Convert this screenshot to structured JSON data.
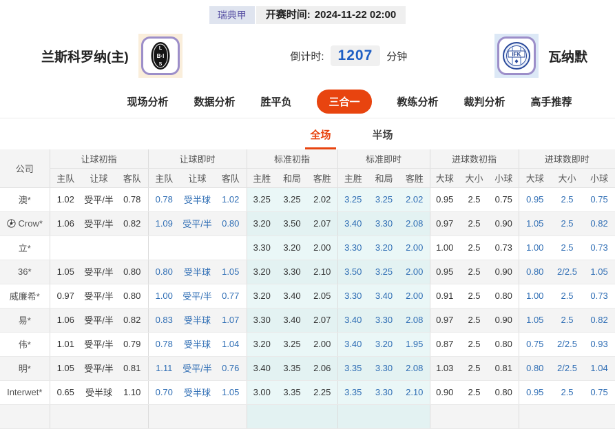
{
  "header": {
    "league_badge": "瑞典甲",
    "kickoff_label": "开赛时间:",
    "kickoff_time": "2024-11-22 02:00"
  },
  "match": {
    "home_team": "兰斯科罗纳(主)",
    "home_logo_letters": [
      "L",
      "B·I",
      "S"
    ],
    "away_team": "瓦纳默",
    "away_logo_text": "IFK",
    "countdown_label": "倒计时:",
    "countdown_value": "1207",
    "countdown_unit": "分钟"
  },
  "nav": {
    "tabs": [
      {
        "label": "现场分析",
        "active": false
      },
      {
        "label": "数据分析",
        "active": false
      },
      {
        "label": "胜平负",
        "active": false
      },
      {
        "label": "三合一",
        "active": true
      },
      {
        "label": "教练分析",
        "active": false
      },
      {
        "label": "裁判分析",
        "active": false
      },
      {
        "label": "高手推荐",
        "active": false
      }
    ]
  },
  "subnav": {
    "tabs": [
      {
        "label": "全场",
        "active": true
      },
      {
        "label": "半场",
        "active": false
      }
    ]
  },
  "table": {
    "company_header": "公司",
    "groups": [
      {
        "label": "让球初指",
        "cols": [
          "主队",
          "让球",
          "客队"
        ],
        "live": false,
        "tint": false
      },
      {
        "label": "让球即时",
        "cols": [
          "主队",
          "让球",
          "客队"
        ],
        "live": true,
        "tint": false
      },
      {
        "label": "标准初指",
        "cols": [
          "主胜",
          "和局",
          "客胜"
        ],
        "live": false,
        "tint": true
      },
      {
        "label": "标准即时",
        "cols": [
          "主胜",
          "和局",
          "客胜"
        ],
        "live": true,
        "tint": true
      },
      {
        "label": "进球数初指",
        "cols": [
          "大球",
          "大小",
          "小球"
        ],
        "live": false,
        "tint": false
      },
      {
        "label": "进球数即时",
        "cols": [
          "大球",
          "大小",
          "小球"
        ],
        "live": true,
        "tint": false
      }
    ],
    "rows": [
      {
        "company": "澳*",
        "ball_icon": false,
        "cells": [
          [
            "1.02",
            "受平/半",
            "0.78"
          ],
          [
            "0.78",
            "受半球",
            "1.02"
          ],
          [
            "3.25",
            "3.25",
            "2.02"
          ],
          [
            "3.25",
            "3.25",
            "2.02"
          ],
          [
            "0.95",
            "2.5",
            "0.75"
          ],
          [
            "0.95",
            "2.5",
            "0.75"
          ]
        ]
      },
      {
        "company": "Crow*",
        "ball_icon": true,
        "cells": [
          [
            "1.06",
            "受平/半",
            "0.82"
          ],
          [
            "1.09",
            "受平/半",
            "0.80"
          ],
          [
            "3.20",
            "3.50",
            "2.07"
          ],
          [
            "3.40",
            "3.30",
            "2.08"
          ],
          [
            "0.97",
            "2.5",
            "0.90"
          ],
          [
            "1.05",
            "2.5",
            "0.82"
          ]
        ]
      },
      {
        "company": "立*",
        "ball_icon": false,
        "cells": [
          [
            "",
            "",
            ""
          ],
          [
            "",
            "",
            ""
          ],
          [
            "3.30",
            "3.20",
            "2.00"
          ],
          [
            "3.30",
            "3.20",
            "2.00"
          ],
          [
            "1.00",
            "2.5",
            "0.73"
          ],
          [
            "1.00",
            "2.5",
            "0.73"
          ]
        ]
      },
      {
        "company": "36*",
        "ball_icon": false,
        "cells": [
          [
            "1.05",
            "受平/半",
            "0.80"
          ],
          [
            "0.80",
            "受半球",
            "1.05"
          ],
          [
            "3.20",
            "3.30",
            "2.10"
          ],
          [
            "3.50",
            "3.25",
            "2.00"
          ],
          [
            "0.95",
            "2.5",
            "0.90"
          ],
          [
            "0.80",
            "2/2.5",
            "1.05"
          ]
        ]
      },
      {
        "company": "威廉希*",
        "ball_icon": false,
        "cells": [
          [
            "0.97",
            "受平/半",
            "0.80"
          ],
          [
            "1.00",
            "受平/半",
            "0.77"
          ],
          [
            "3.20",
            "3.40",
            "2.05"
          ],
          [
            "3.30",
            "3.40",
            "2.00"
          ],
          [
            "0.91",
            "2.5",
            "0.80"
          ],
          [
            "1.00",
            "2.5",
            "0.73"
          ]
        ]
      },
      {
        "company": "易*",
        "ball_icon": false,
        "cells": [
          [
            "1.06",
            "受平/半",
            "0.82"
          ],
          [
            "0.83",
            "受半球",
            "1.07"
          ],
          [
            "3.30",
            "3.40",
            "2.07"
          ],
          [
            "3.40",
            "3.30",
            "2.08"
          ],
          [
            "0.97",
            "2.5",
            "0.90"
          ],
          [
            "1.05",
            "2.5",
            "0.82"
          ]
        ]
      },
      {
        "company": "伟*",
        "ball_icon": false,
        "cells": [
          [
            "1.01",
            "受平/半",
            "0.79"
          ],
          [
            "0.78",
            "受半球",
            "1.04"
          ],
          [
            "3.20",
            "3.25",
            "2.00"
          ],
          [
            "3.40",
            "3.20",
            "1.95"
          ],
          [
            "0.87",
            "2.5",
            "0.80"
          ],
          [
            "0.75",
            "2/2.5",
            "0.93"
          ]
        ]
      },
      {
        "company": "明*",
        "ball_icon": false,
        "cells": [
          [
            "1.05",
            "受平/半",
            "0.81"
          ],
          [
            "1.11",
            "受平/半",
            "0.76"
          ],
          [
            "3.40",
            "3.35",
            "2.06"
          ],
          [
            "3.35",
            "3.30",
            "2.08"
          ],
          [
            "1.03",
            "2.5",
            "0.81"
          ],
          [
            "0.80",
            "2/2.5",
            "1.04"
          ]
        ]
      },
      {
        "company": "Interwet*",
        "ball_icon": false,
        "cells": [
          [
            "0.65",
            "受半球",
            "1.10"
          ],
          [
            "0.70",
            "受半球",
            "1.05"
          ],
          [
            "3.00",
            "3.35",
            "2.25"
          ],
          [
            "3.35",
            "3.30",
            "2.10"
          ],
          [
            "0.90",
            "2.5",
            "0.80"
          ],
          [
            "0.95",
            "2.5",
            "0.75"
          ]
        ]
      },
      {
        "company": "",
        "ball_icon": false,
        "partial": true,
        "cells": [
          [
            "",
            "",
            ""
          ],
          [
            "",
            "",
            ""
          ],
          [
            "",
            "",
            ""
          ],
          [
            "",
            "",
            ""
          ],
          [
            "",
            "",
            ""
          ],
          [
            "",
            "",
            ""
          ]
        ]
      }
    ]
  },
  "colors": {
    "accent_red": "#e8440f",
    "live_blue": "#2e6db4",
    "countdown_blue": "#1e5ec4",
    "tint_cyan": "#eaf7f7",
    "badge_purple": "#5c55a6"
  }
}
